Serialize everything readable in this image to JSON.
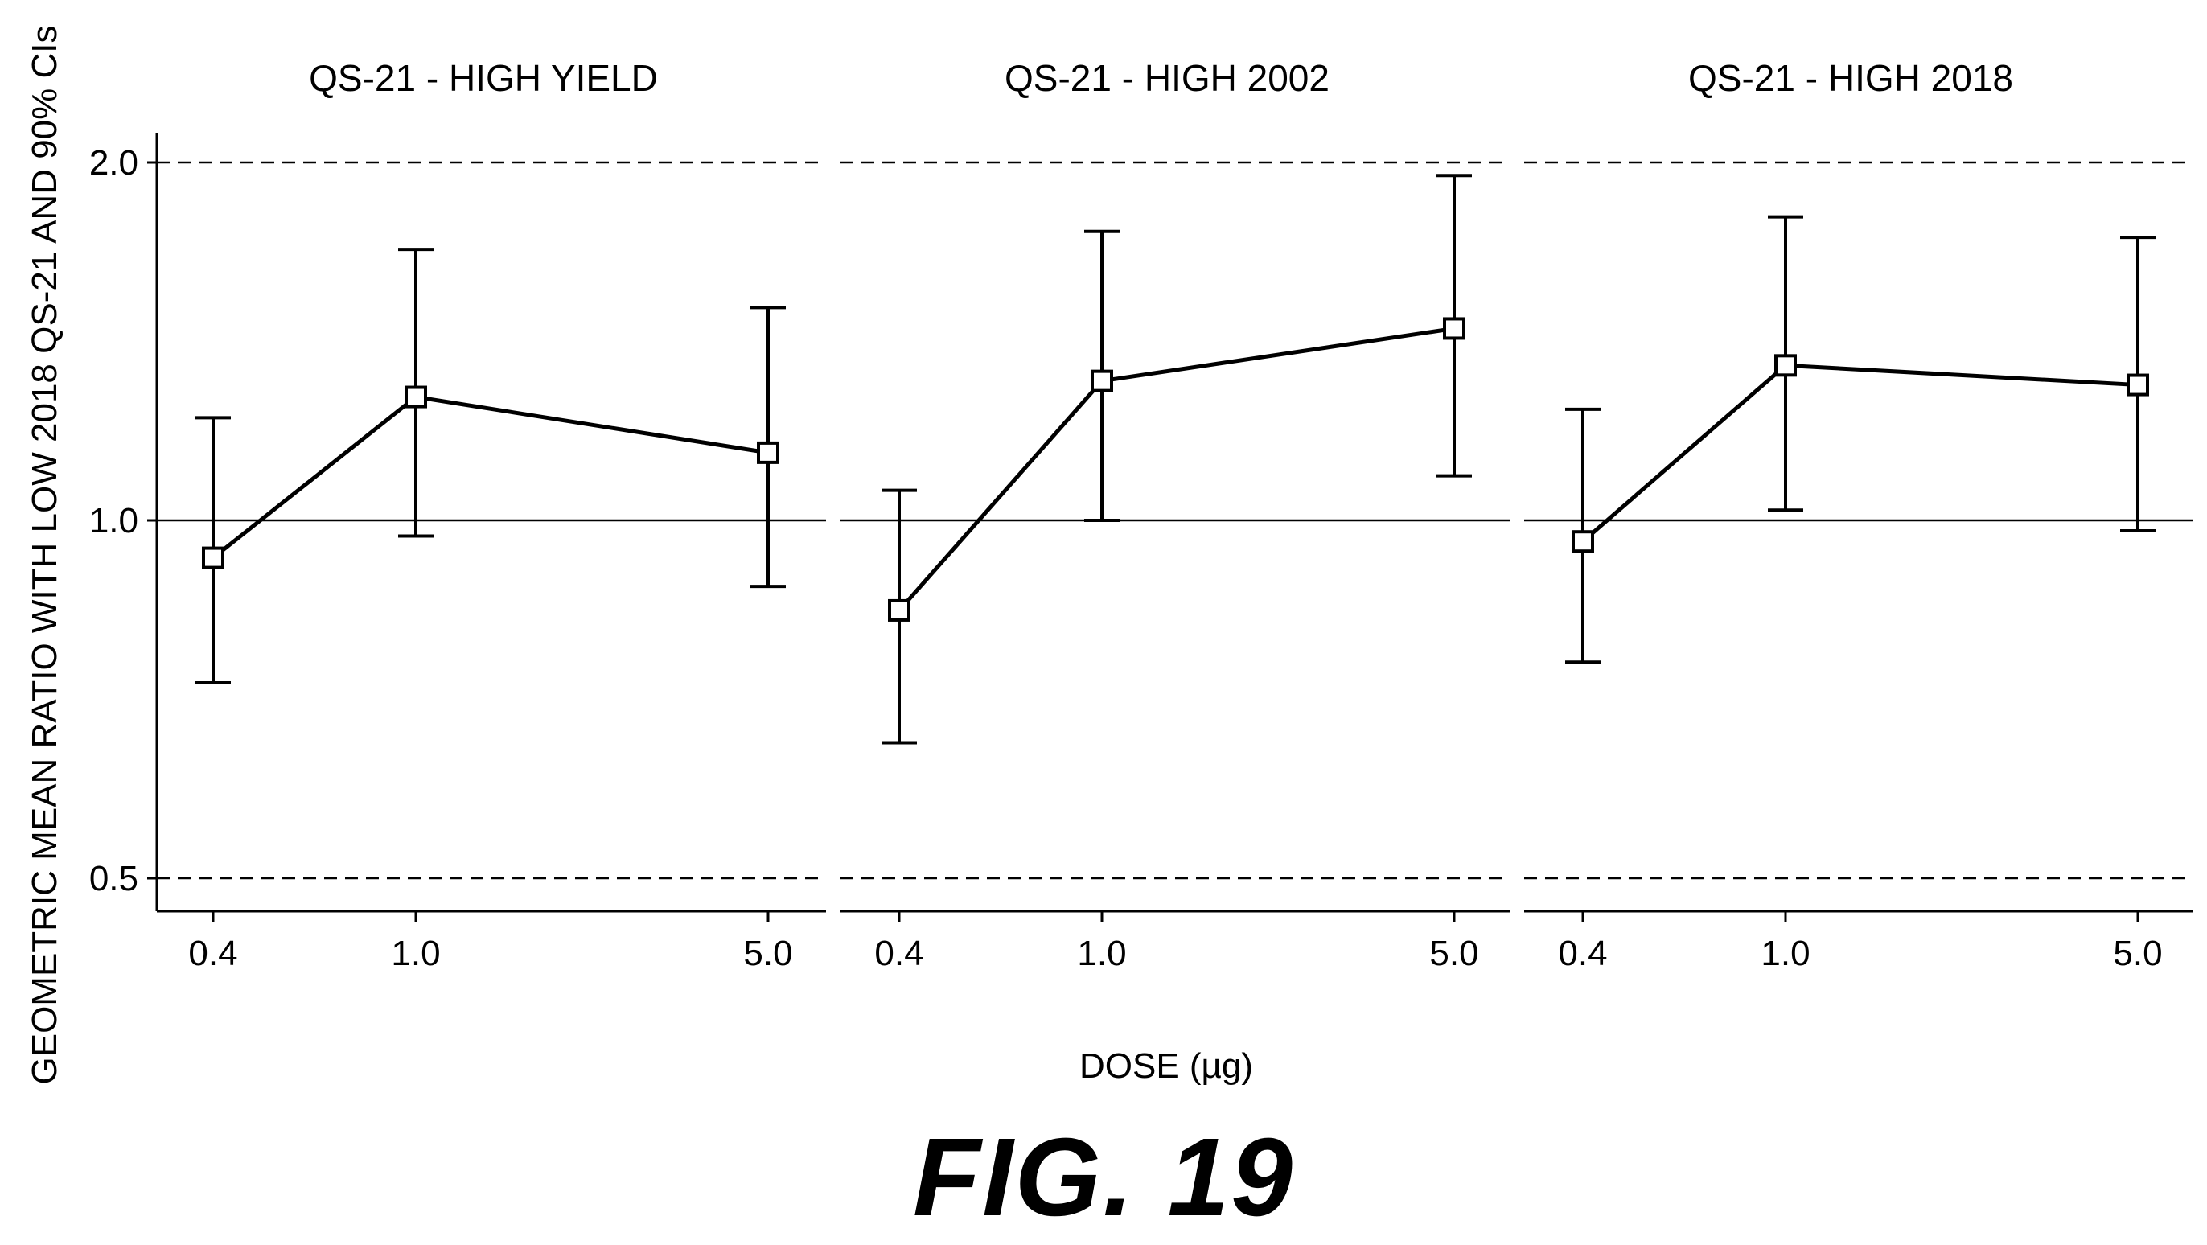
{
  "chart_data": {
    "type": "line",
    "ylabel": "GEOMETRIC MEAN RATIO WITH LOW 2018 QS-21 AND 90% CIs",
    "xlabel": "DOSE (µg)",
    "y_scale": "log",
    "ylim": [
      0.45,
      2.1
    ],
    "yticks": [
      {
        "value": 0.5,
        "label": "0.5"
      },
      {
        "value": 1.0,
        "label": "1.0"
      },
      {
        "value": 2.0,
        "label": "2.0"
      }
    ],
    "reference_lines": {
      "solid": [
        1.0
      ],
      "dashed": [
        0.5,
        2.0
      ]
    },
    "x_categories": [
      "0.4",
      "1.0",
      "5.0"
    ],
    "x_scale": "log",
    "grid": false,
    "panels": [
      {
        "title": "QS-21 - HIGH YIELD",
        "points": [
          {
            "x": "0.4",
            "estimate": 0.93,
            "lower": 0.73,
            "upper": 1.22
          },
          {
            "x": "1.0",
            "estimate": 1.27,
            "lower": 0.97,
            "upper": 1.69
          },
          {
            "x": "5.0",
            "estimate": 1.14,
            "lower": 0.88,
            "upper": 1.51
          }
        ]
      },
      {
        "title": "QS-21 - HIGH 2002",
        "points": [
          {
            "x": "0.4",
            "estimate": 0.84,
            "lower": 0.65,
            "upper": 1.06
          },
          {
            "x": "1.0",
            "estimate": 1.31,
            "lower": 1.0,
            "upper": 1.75
          },
          {
            "x": "5.0",
            "estimate": 1.45,
            "lower": 1.09,
            "upper": 1.95
          }
        ]
      },
      {
        "title": "QS-21 - HIGH 2018",
        "points": [
          {
            "x": "0.4",
            "estimate": 0.96,
            "lower": 0.76,
            "upper": 1.24
          },
          {
            "x": "1.0",
            "estimate": 1.35,
            "lower": 1.02,
            "upper": 1.8
          },
          {
            "x": "5.0",
            "estimate": 1.3,
            "lower": 0.98,
            "upper": 1.73
          }
        ]
      }
    ]
  },
  "figure_label": "FIG. 19"
}
